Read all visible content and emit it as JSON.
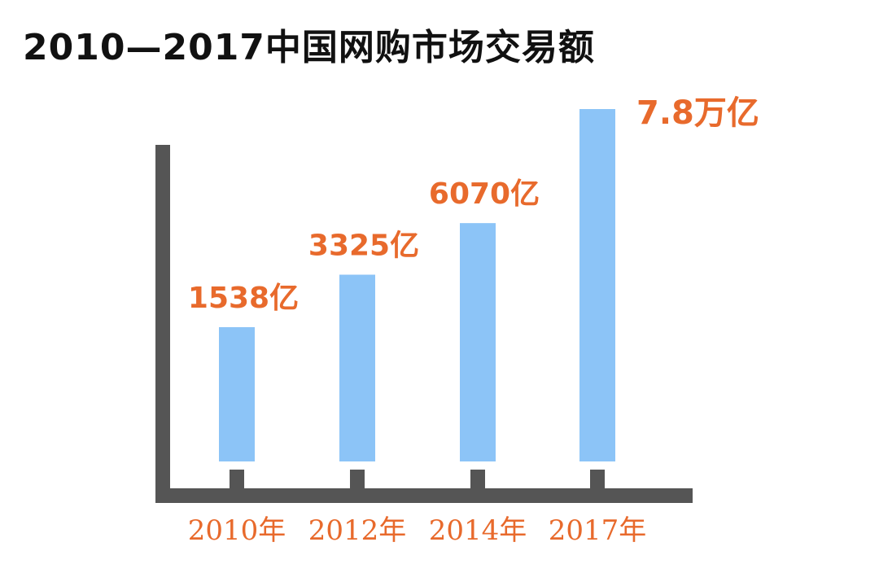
{
  "title": "2010—2017中国网购市场交易额",
  "colors": {
    "bar": "#8cc4f7",
    "axis": "#555555",
    "label": "#e86a2c",
    "title": "#111111"
  },
  "chart_data": {
    "type": "bar",
    "title": "2010—2017中国网购市场交易额",
    "xlabel": "",
    "ylabel": "",
    "categories": [
      "2010年",
      "2012年",
      "2014年",
      "2017年"
    ],
    "values": [
      1538,
      3325,
      6070,
      78000
    ],
    "data_labels": [
      "1538亿",
      "3325亿",
      "6070亿",
      "7.8万亿"
    ],
    "unit": "亿",
    "grid": false,
    "legend": "none"
  }
}
